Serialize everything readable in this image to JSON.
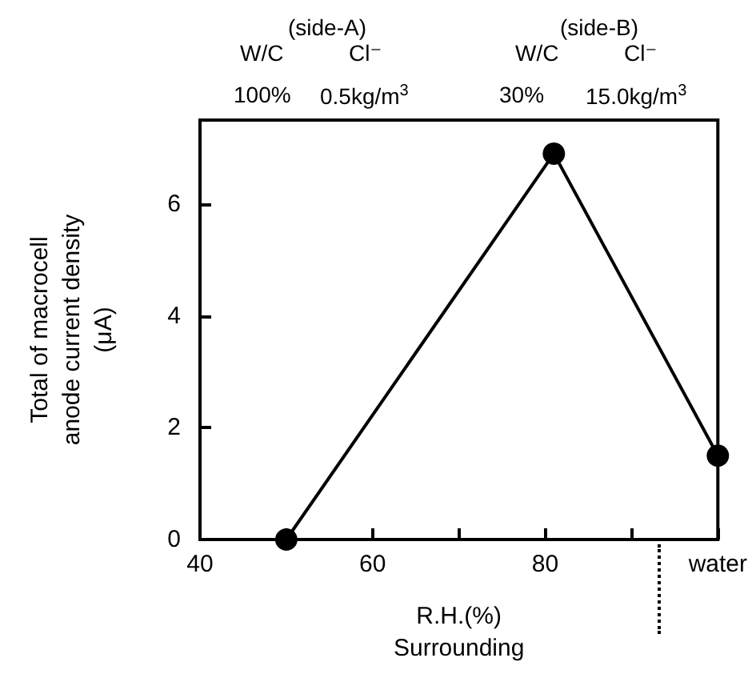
{
  "chart_data": {
    "type": "line",
    "xlabel": "R.H.(%)\nSurrounding",
    "ylabel": "Total of macrocell\nanode current density\n(μA)",
    "annotations": [
      "(side-A)",
      "W/C",
      "Cl⁻",
      "100%",
      "0.5kg/m$^{3}$",
      "(side-B)",
      "W/C",
      "Cl⁻",
      "30%",
      "15.0kg/m$^{3}$"
    ],
    "x": [
      50,
      81,
      100
    ],
    "series": [
      {
        "color": "#000000",
        "values": [
          0,
          6.9,
          1.5
        ]
      }
    ],
    "xlim": [
      40,
      100
    ],
    "xticks": [
      40,
      {
        "value": 50,
        "label": null
      },
      60,
      {
        "value": 70,
        "label": null
      },
      80,
      {
        "value": 90,
        "label": null
      },
      {
        "value": 100,
        "label": "water"
      }
    ],
    "ylim": [
      0,
      7.5
    ],
    "yticks": [
      0,
      2,
      4,
      6
    ],
    "marker": "circle",
    "line_style": "solid"
  }
}
